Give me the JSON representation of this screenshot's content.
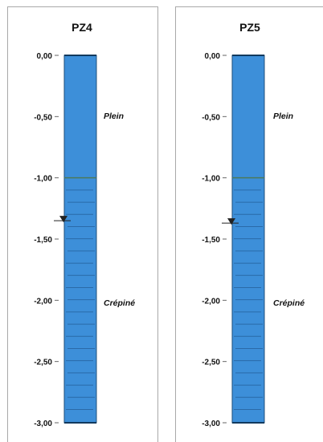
{
  "piezometers": [
    {
      "name": "PZ4",
      "tick_labels": [
        "0,00",
        "-0,50",
        "-1,00",
        "-1,50",
        "-2,00",
        "-2,50",
        "-3,00"
      ],
      "depth_range": [
        0,
        -3.0
      ],
      "plain_section": {
        "label": "Plein",
        "from": 0.0,
        "to": -1.0
      },
      "screen_section": {
        "label": "Crépiné",
        "from": -1.0,
        "to": -3.0
      },
      "water_level": -1.35
    },
    {
      "name": "PZ5",
      "tick_labels": [
        "0,00",
        "-0,50",
        "-1,00",
        "-1,50",
        "-2,00",
        "-2,50",
        "-3,00"
      ],
      "depth_range": [
        0,
        -3.0
      ],
      "plain_section": {
        "label": "Plein",
        "from": 0.0,
        "to": -1.0
      },
      "screen_section": {
        "label": "Crépiné",
        "from": -1.0,
        "to": -3.0
      },
      "water_level": -1.37
    }
  ],
  "colors": {
    "casing_fill": "#3d8fd9",
    "casing_border": "#1f4f7a",
    "slot_lines": "#2a6aa8",
    "water_marker": "#222222",
    "frame": "#a9a9a9"
  }
}
